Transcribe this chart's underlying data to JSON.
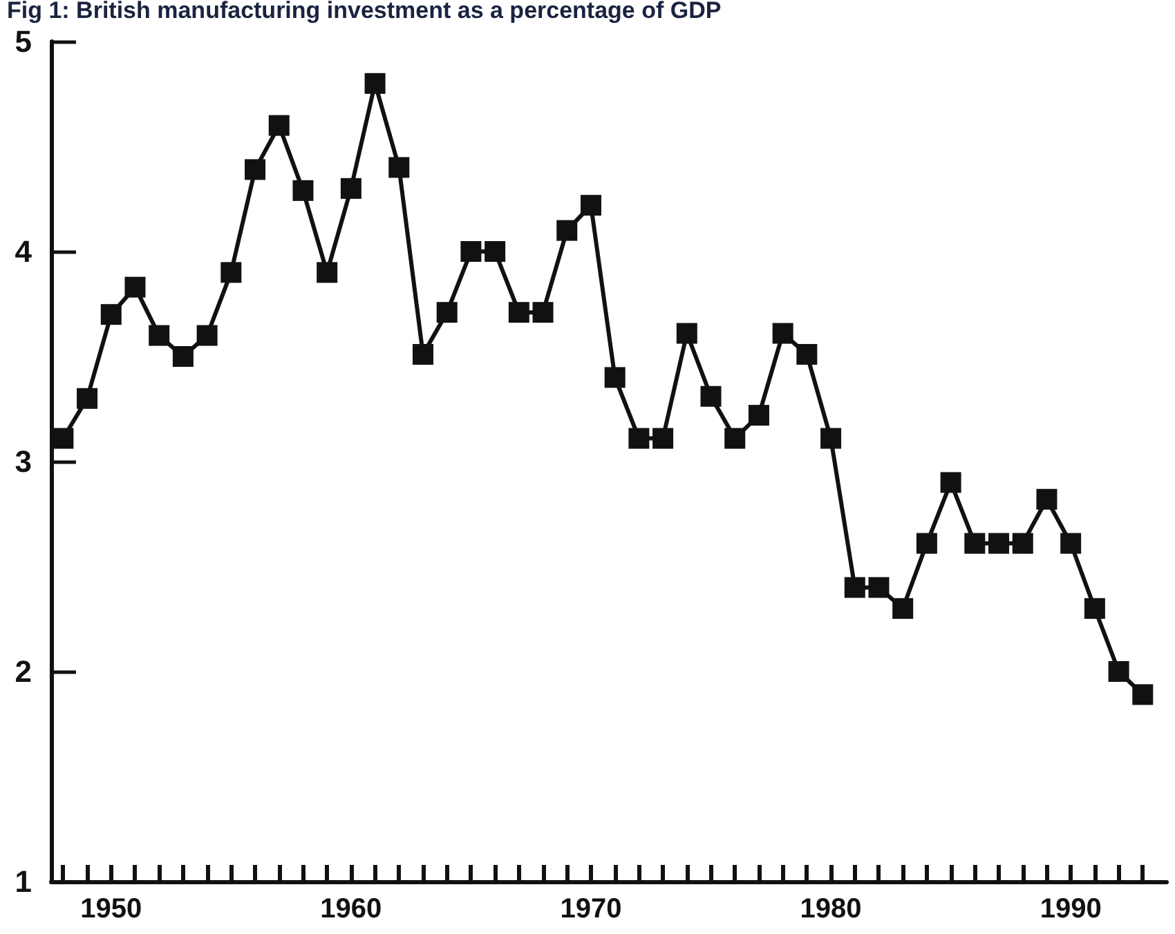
{
  "chart_data": {
    "type": "line",
    "title": "Fig 1: British manufacturing investment as a percentage of GDP",
    "x": [
      1948,
      1949,
      1950,
      1951,
      1952,
      1953,
      1954,
      1955,
      1956,
      1957,
      1958,
      1959,
      1960,
      1961,
      1962,
      1963,
      1964,
      1965,
      1966,
      1967,
      1968,
      1969,
      1970,
      1971,
      1972,
      1973,
      1974,
      1975,
      1976,
      1977,
      1978,
      1979,
      1980,
      1981,
      1982,
      1983,
      1984,
      1985,
      1986,
      1987,
      1988,
      1989,
      1990,
      1991,
      1992,
      1993
    ],
    "series": [
      {
        "color": "#111111",
        "values": [
          3.11,
          3.3,
          3.7,
          3.83,
          3.6,
          3.5,
          3.6,
          3.9,
          4.39,
          4.6,
          4.29,
          3.9,
          4.3,
          4.8,
          4.4,
          3.51,
          3.71,
          4.0,
          4.0,
          3.71,
          3.71,
          4.1,
          4.22,
          3.4,
          3.11,
          3.11,
          3.61,
          3.31,
          3.11,
          3.22,
          3.61,
          3.51,
          3.11,
          2.4,
          2.4,
          2.3,
          2.61,
          2.9,
          2.61,
          2.61,
          2.61,
          2.82,
          2.61,
          2.3,
          2.0,
          1.89
        ]
      }
    ],
    "xlim": [
      1947.5,
      1994
    ],
    "xticks": [
      {
        "value": 1948,
        "label": null
      },
      {
        "value": 1949,
        "label": null
      },
      1950,
      {
        "value": 1951,
        "label": null
      },
      {
        "value": 1952,
        "label": null
      },
      {
        "value": 1953,
        "label": null
      },
      {
        "value": 1954,
        "label": null
      },
      {
        "value": 1955,
        "label": null
      },
      {
        "value": 1956,
        "label": null
      },
      {
        "value": 1957,
        "label": null
      },
      {
        "value": 1958,
        "label": null
      },
      {
        "value": 1959,
        "label": null
      },
      1960,
      {
        "value": 1961,
        "label": null
      },
      {
        "value": 1962,
        "label": null
      },
      {
        "value": 1963,
        "label": null
      },
      {
        "value": 1964,
        "label": null
      },
      {
        "value": 1965,
        "label": null
      },
      {
        "value": 1966,
        "label": null
      },
      {
        "value": 1967,
        "label": null
      },
      {
        "value": 1968,
        "label": null
      },
      {
        "value": 1969,
        "label": null
      },
      1970,
      {
        "value": 1971,
        "label": null
      },
      {
        "value": 1972,
        "label": null
      },
      {
        "value": 1973,
        "label": null
      },
      {
        "value": 1974,
        "label": null
      },
      {
        "value": 1975,
        "label": null
      },
      {
        "value": 1976,
        "label": null
      },
      {
        "value": 1977,
        "label": null
      },
      {
        "value": 1978,
        "label": null
      },
      {
        "value": 1979,
        "label": null
      },
      1980,
      {
        "value": 1981,
        "label": null
      },
      {
        "value": 1982,
        "label": null
      },
      {
        "value": 1983,
        "label": null
      },
      {
        "value": 1984,
        "label": null
      },
      {
        "value": 1985,
        "label": null
      },
      {
        "value": 1986,
        "label": null
      },
      {
        "value": 1987,
        "label": null
      },
      {
        "value": 1988,
        "label": null
      },
      {
        "value": 1989,
        "label": null
      },
      1990,
      {
        "value": 1991,
        "label": null
      },
      {
        "value": 1992,
        "label": null
      },
      {
        "value": 1993,
        "label": null
      }
    ],
    "ylim": [
      1,
      5
    ],
    "yticks": [
      1,
      2,
      3,
      4,
      5
    ],
    "grid": false,
    "marker": "square",
    "line_style": "solid"
  }
}
